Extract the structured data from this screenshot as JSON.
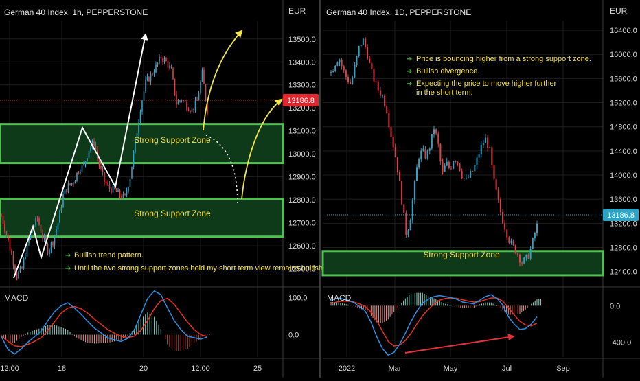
{
  "colors": {
    "background": "#000000",
    "grid": "#1e1e1e",
    "divider": "#3a3a3a",
    "axis_text": "#d6d6d6",
    "candle_up": "#2fa3c4",
    "candle_down": "#d9414b",
    "zone_fill": "#0e3a1a",
    "zone_border": "#4fbf4f",
    "annotation_text": "#f5e24a",
    "bullet": "#4fbf4f",
    "price_tag": "#e0262e",
    "macd_line": "#2d8fe0",
    "signal_line": "#e4321e",
    "trend_arrow": "#ffffff",
    "projection_arrow": "#f2e64a",
    "divergence_arrow": "#e4323a"
  },
  "chart_data": [
    {
      "type": "candlestick",
      "title": "German 40 Index, 1h, PEPPERSTONE",
      "currency": "EUR",
      "y_ticks": [
        12500.0,
        12600.0,
        12700.0,
        12800.0,
        12900.0,
        13000.0,
        13100.0,
        13200.0,
        13300.0,
        13400.0,
        13500.0
      ],
      "y_tick_labels": [
        "12500.0",
        "12600.0",
        "12700.0",
        "12800.0",
        "12900.0",
        "13000.0",
        "13100.0",
        "13200.0",
        "13300.0",
        "13400.0",
        "13500.0"
      ],
      "ylim": [
        12430,
        13580
      ],
      "x_tick_labels": [
        "12:00",
        "18",
        "20",
        "12:00",
        "25"
      ],
      "last_price": "13186.8",
      "price_path": [
        12730,
        12650,
        12560,
        12470,
        12500,
        12600,
        12680,
        12720,
        12640,
        12580,
        12620,
        12700,
        12820,
        12860,
        12880,
        12930,
        12950,
        13020,
        13050,
        12950,
        12880,
        12850,
        12840,
        12820,
        12810,
        12900,
        13050,
        13200,
        13310,
        13340,
        13380,
        13420,
        13400,
        13360,
        13220,
        13240,
        13210,
        13190,
        13230,
        13350,
        13190
      ],
      "zones": [
        {
          "label": "Strong Support Zone",
          "from": 12960,
          "to": 13130
        },
        {
          "label": "Strong Support Zone",
          "from": 12640,
          "to": 12805
        }
      ],
      "notes": [
        "Bullish trend pattern.",
        "Until the two strong support zones hold my short term view remains bullish here."
      ],
      "macd": {
        "label": "MACD",
        "y_ticks": [
          100.0,
          0.0
        ],
        "y_tick_labels": [
          "100.0",
          "0.0"
        ],
        "ylim": [
          -60,
          125
        ],
        "macd_line": [
          -5,
          -40,
          -52,
          -38,
          -20,
          -5,
          10,
          38,
          62,
          78,
          86,
          72,
          55,
          36,
          18,
          5,
          -8,
          -14,
          -18,
          -10,
          12,
          55,
          98,
          118,
          108,
          72,
          38,
          14,
          -4,
          -8,
          -12,
          -6
        ],
        "signal_line": [
          -3,
          -18,
          -30,
          -32,
          -26,
          -18,
          -8,
          12,
          35,
          58,
          72,
          76,
          70,
          58,
          42,
          28,
          14,
          4,
          -4,
          -8,
          -4,
          12,
          38,
          70,
          92,
          98,
          82,
          58,
          34,
          14,
          0,
          -5
        ]
      }
    },
    {
      "type": "candlestick",
      "title": "German 40 Index, 1D, PEPPERSTONE",
      "currency": "EUR",
      "y_ticks": [
        12400.0,
        12800.0,
        13200.0,
        13600.0,
        14000.0,
        14400.0,
        14800.0,
        15200.0,
        15600.0,
        16000.0,
        16400.0
      ],
      "y_tick_labels": [
        "12400.0",
        "12800.0",
        "13200.0",
        "13600.0",
        "14000.0",
        "14400.0",
        "14800.0",
        "15200.0",
        "15600.0",
        "16000.0",
        "16400.0"
      ],
      "ylim": [
        12180,
        16560
      ],
      "x_tick_labels": [
        "2022",
        "Mar",
        "May",
        "Jul",
        "Sep"
      ],
      "last_price": "13186.8",
      "price_path": [
        15700,
        15850,
        15950,
        15750,
        15600,
        15500,
        15800,
        16100,
        16250,
        16050,
        15750,
        15550,
        15400,
        15300,
        15100,
        14700,
        14400,
        14000,
        13500,
        13000,
        13300,
        13800,
        14300,
        14400,
        14300,
        14500,
        14800,
        14500,
        14000,
        14200,
        14100,
        14300,
        14200,
        14000,
        13900,
        14000,
        14100,
        14300,
        14500,
        14600,
        14400,
        13900,
        13600,
        13300,
        13100,
        12900,
        12800,
        12700,
        12550,
        12600,
        12700,
        12950,
        13180
      ],
      "zones": [
        {
          "label": "Strong Support Zone",
          "from": 12340,
          "to": 12740
        }
      ],
      "notes": [
        "Price is bouncing higher from a strong support zone.",
        "Bullish divergence.",
        "Expecting the price to move higher further",
        "in the short term."
      ],
      "macd": {
        "label": "MACD",
        "y_ticks": [
          0.0,
          -400.0
        ],
        "y_tick_labels": [
          "0.0",
          "-400.0"
        ],
        "ylim": [
          -560,
          190
        ],
        "macd_line": [
          60,
          80,
          75,
          60,
          35,
          -10,
          -60,
          -180,
          -340,
          -470,
          -540,
          -510,
          -420,
          -300,
          -170,
          -60,
          30,
          70,
          100,
          110,
          100,
          90,
          70,
          40,
          30,
          20,
          60,
          100,
          120,
          80,
          10,
          -120,
          -200,
          -260,
          -250,
          -200,
          -120
        ],
        "signal_line": [
          20,
          40,
          50,
          48,
          40,
          20,
          -10,
          -70,
          -160,
          -280,
          -390,
          -440,
          -430,
          -380,
          -300,
          -200,
          -110,
          -40,
          20,
          60,
          80,
          85,
          80,
          65,
          50,
          40,
          45,
          65,
          85,
          85,
          50,
          -20,
          -100,
          -170,
          -210,
          -220,
          -190
        ]
      }
    }
  ]
}
